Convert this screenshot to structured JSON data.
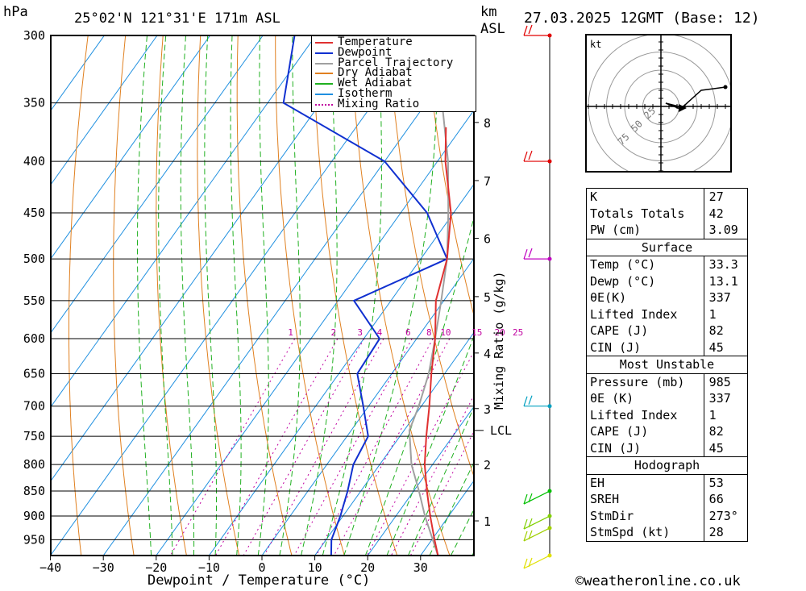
{
  "header": {
    "pressure_unit": "hPa",
    "location": "25°02'N  121°31'E  171m  ASL",
    "height_unit": "km",
    "height_ref": "ASL",
    "datetime": "27.03.2025  12GMT  (Base: 12)"
  },
  "footer": {
    "copyright": "©weatheronline.co.uk"
  },
  "chart_data": {
    "type": "skew-t",
    "xlabel": "Dewpoint / Temperature (°C)",
    "mixing_ratio_axis_label": "Mixing Ratio (g/kg)",
    "pressure_levels": [
      300,
      350,
      400,
      450,
      500,
      550,
      600,
      650,
      700,
      750,
      800,
      850,
      900,
      950
    ],
    "temperature_ticks": [
      -40,
      -30,
      -20,
      -10,
      0,
      10,
      20,
      30
    ],
    "height_ticks_km": [
      {
        "km": "1",
        "p": 910
      },
      {
        "km": "2",
        "p": 800
      },
      {
        "km": "3",
        "p": 704
      },
      {
        "km": "4",
        "p": 620
      },
      {
        "km": "5",
        "p": 545
      },
      {
        "km": "6",
        "p": 477
      },
      {
        "km": "7",
        "p": 418
      },
      {
        "km": "8",
        "p": 366
      }
    ],
    "lcl": {
      "label": "LCL",
      "p": 740
    },
    "mixing_ratio_labels": [
      "1",
      "2",
      "3",
      "4",
      "6",
      "8",
      "10",
      "15",
      "20",
      "25"
    ],
    "legend": [
      "Temperature",
      "Dewpoint",
      "Parcel Trajectory",
      "Dry Adiabat",
      "Wet Adiabat",
      "Isotherm",
      "Mixing Ratio"
    ],
    "temperature_profile": [
      {
        "p": 985,
        "t": 33.3
      },
      {
        "p": 950,
        "t": 30.5
      },
      {
        "p": 900,
        "t": 26.5
      },
      {
        "p": 850,
        "t": 22.5
      },
      {
        "p": 800,
        "t": 18.5
      },
      {
        "p": 750,
        "t": 15.0
      },
      {
        "p": 700,
        "t": 11.5
      },
      {
        "p": 650,
        "t": 7.5
      },
      {
        "p": 600,
        "t": 3.5
      },
      {
        "p": 550,
        "t": -1.5
      },
      {
        "p": 500,
        "t": -5.0
      },
      {
        "p": 450,
        "t": -10.5
      },
      {
        "p": 400,
        "t": -18.5
      },
      {
        "p": 370,
        "t": -23.0
      }
    ],
    "dewpoint_profile": [
      {
        "p": 985,
        "t": 13.1
      },
      {
        "p": 950,
        "t": 11.0
      },
      {
        "p": 900,
        "t": 9.5
      },
      {
        "p": 850,
        "t": 7.5
      },
      {
        "p": 800,
        "t": 5.0
      },
      {
        "p": 750,
        "t": 4.0
      },
      {
        "p": 700,
        "t": -1.0
      },
      {
        "p": 650,
        "t": -6.5
      },
      {
        "p": 600,
        "t": -7.0
      },
      {
        "p": 550,
        "t": -17.0
      },
      {
        "p": 500,
        "t": -5.0
      },
      {
        "p": 450,
        "t": -15.0
      },
      {
        "p": 400,
        "t": -30.0
      },
      {
        "p": 350,
        "t": -57.0
      },
      {
        "p": 300,
        "t": -64.0
      }
    ],
    "parcel_profile": [
      {
        "p": 985,
        "t": 33.3
      },
      {
        "p": 900,
        "t": 25.5
      },
      {
        "p": 850,
        "t": 21.0
      },
      {
        "p": 800,
        "t": 16.0
      },
      {
        "p": 740,
        "t": 11.0
      },
      {
        "p": 700,
        "t": 9.5
      },
      {
        "p": 650,
        "t": 7.0
      },
      {
        "p": 600,
        "t": 3.5
      },
      {
        "p": 550,
        "t": -0.5
      },
      {
        "p": 500,
        "t": -5.0
      },
      {
        "p": 450,
        "t": -11.0
      },
      {
        "p": 400,
        "t": -18.0
      },
      {
        "p": 350,
        "t": -27.0
      },
      {
        "p": 300,
        "t": -38.0
      }
    ],
    "wind_barbs": [
      {
        "p": 300,
        "color": "#e00000"
      },
      {
        "p": 400,
        "color": "#e00000"
      },
      {
        "p": 500,
        "color": "#c000c0"
      },
      {
        "p": 700,
        "color": "#00a0c0"
      },
      {
        "p": 850,
        "color": "#00c000"
      },
      {
        "p": 900,
        "color": "#80d000"
      },
      {
        "p": 925,
        "color": "#a0d000"
      },
      {
        "p": 985,
        "color": "#e0e000"
      }
    ],
    "colors": {
      "temperature": "#e03030",
      "dewpoint": "#1030d0",
      "parcel": "#a0a0a0",
      "dry_adiabat": "#e08020",
      "wet_adiabat": "#20b020",
      "isotherm": "#2090e0",
      "mixing_ratio": "#c000a0"
    }
  },
  "hodograph": {
    "unit": "kt",
    "rings": [
      "25",
      "50",
      "75"
    ]
  },
  "indices": {
    "top": [
      {
        "label": "K",
        "value": "27"
      },
      {
        "label": "Totals Totals",
        "value": "42"
      },
      {
        "label": "PW (cm)",
        "value": "3.09"
      }
    ],
    "surface_title": "Surface",
    "surface": [
      {
        "label": "Temp (°C)",
        "value": "33.3"
      },
      {
        "label": "Dewp (°C)",
        "value": "13.1"
      },
      {
        "label": "θE(K)",
        "value": "337"
      },
      {
        "label": "Lifted Index",
        "value": "1"
      },
      {
        "label": "CAPE (J)",
        "value": "82"
      },
      {
        "label": "CIN (J)",
        "value": "45"
      }
    ],
    "mu_title": "Most Unstable",
    "mu": [
      {
        "label": "Pressure (mb)",
        "value": "985"
      },
      {
        "label": "θE (K)",
        "value": "337"
      },
      {
        "label": "Lifted Index",
        "value": "1"
      },
      {
        "label": "CAPE (J)",
        "value": "82"
      },
      {
        "label": "CIN (J)",
        "value": "45"
      }
    ],
    "hodo_title": "Hodograph",
    "hodo": [
      {
        "label": "EH",
        "value": "53"
      },
      {
        "label": "SREH",
        "value": "66"
      },
      {
        "label": "StmDir",
        "value": "273°"
      },
      {
        "label": "StmSpd (kt)",
        "value": "28"
      }
    ]
  }
}
